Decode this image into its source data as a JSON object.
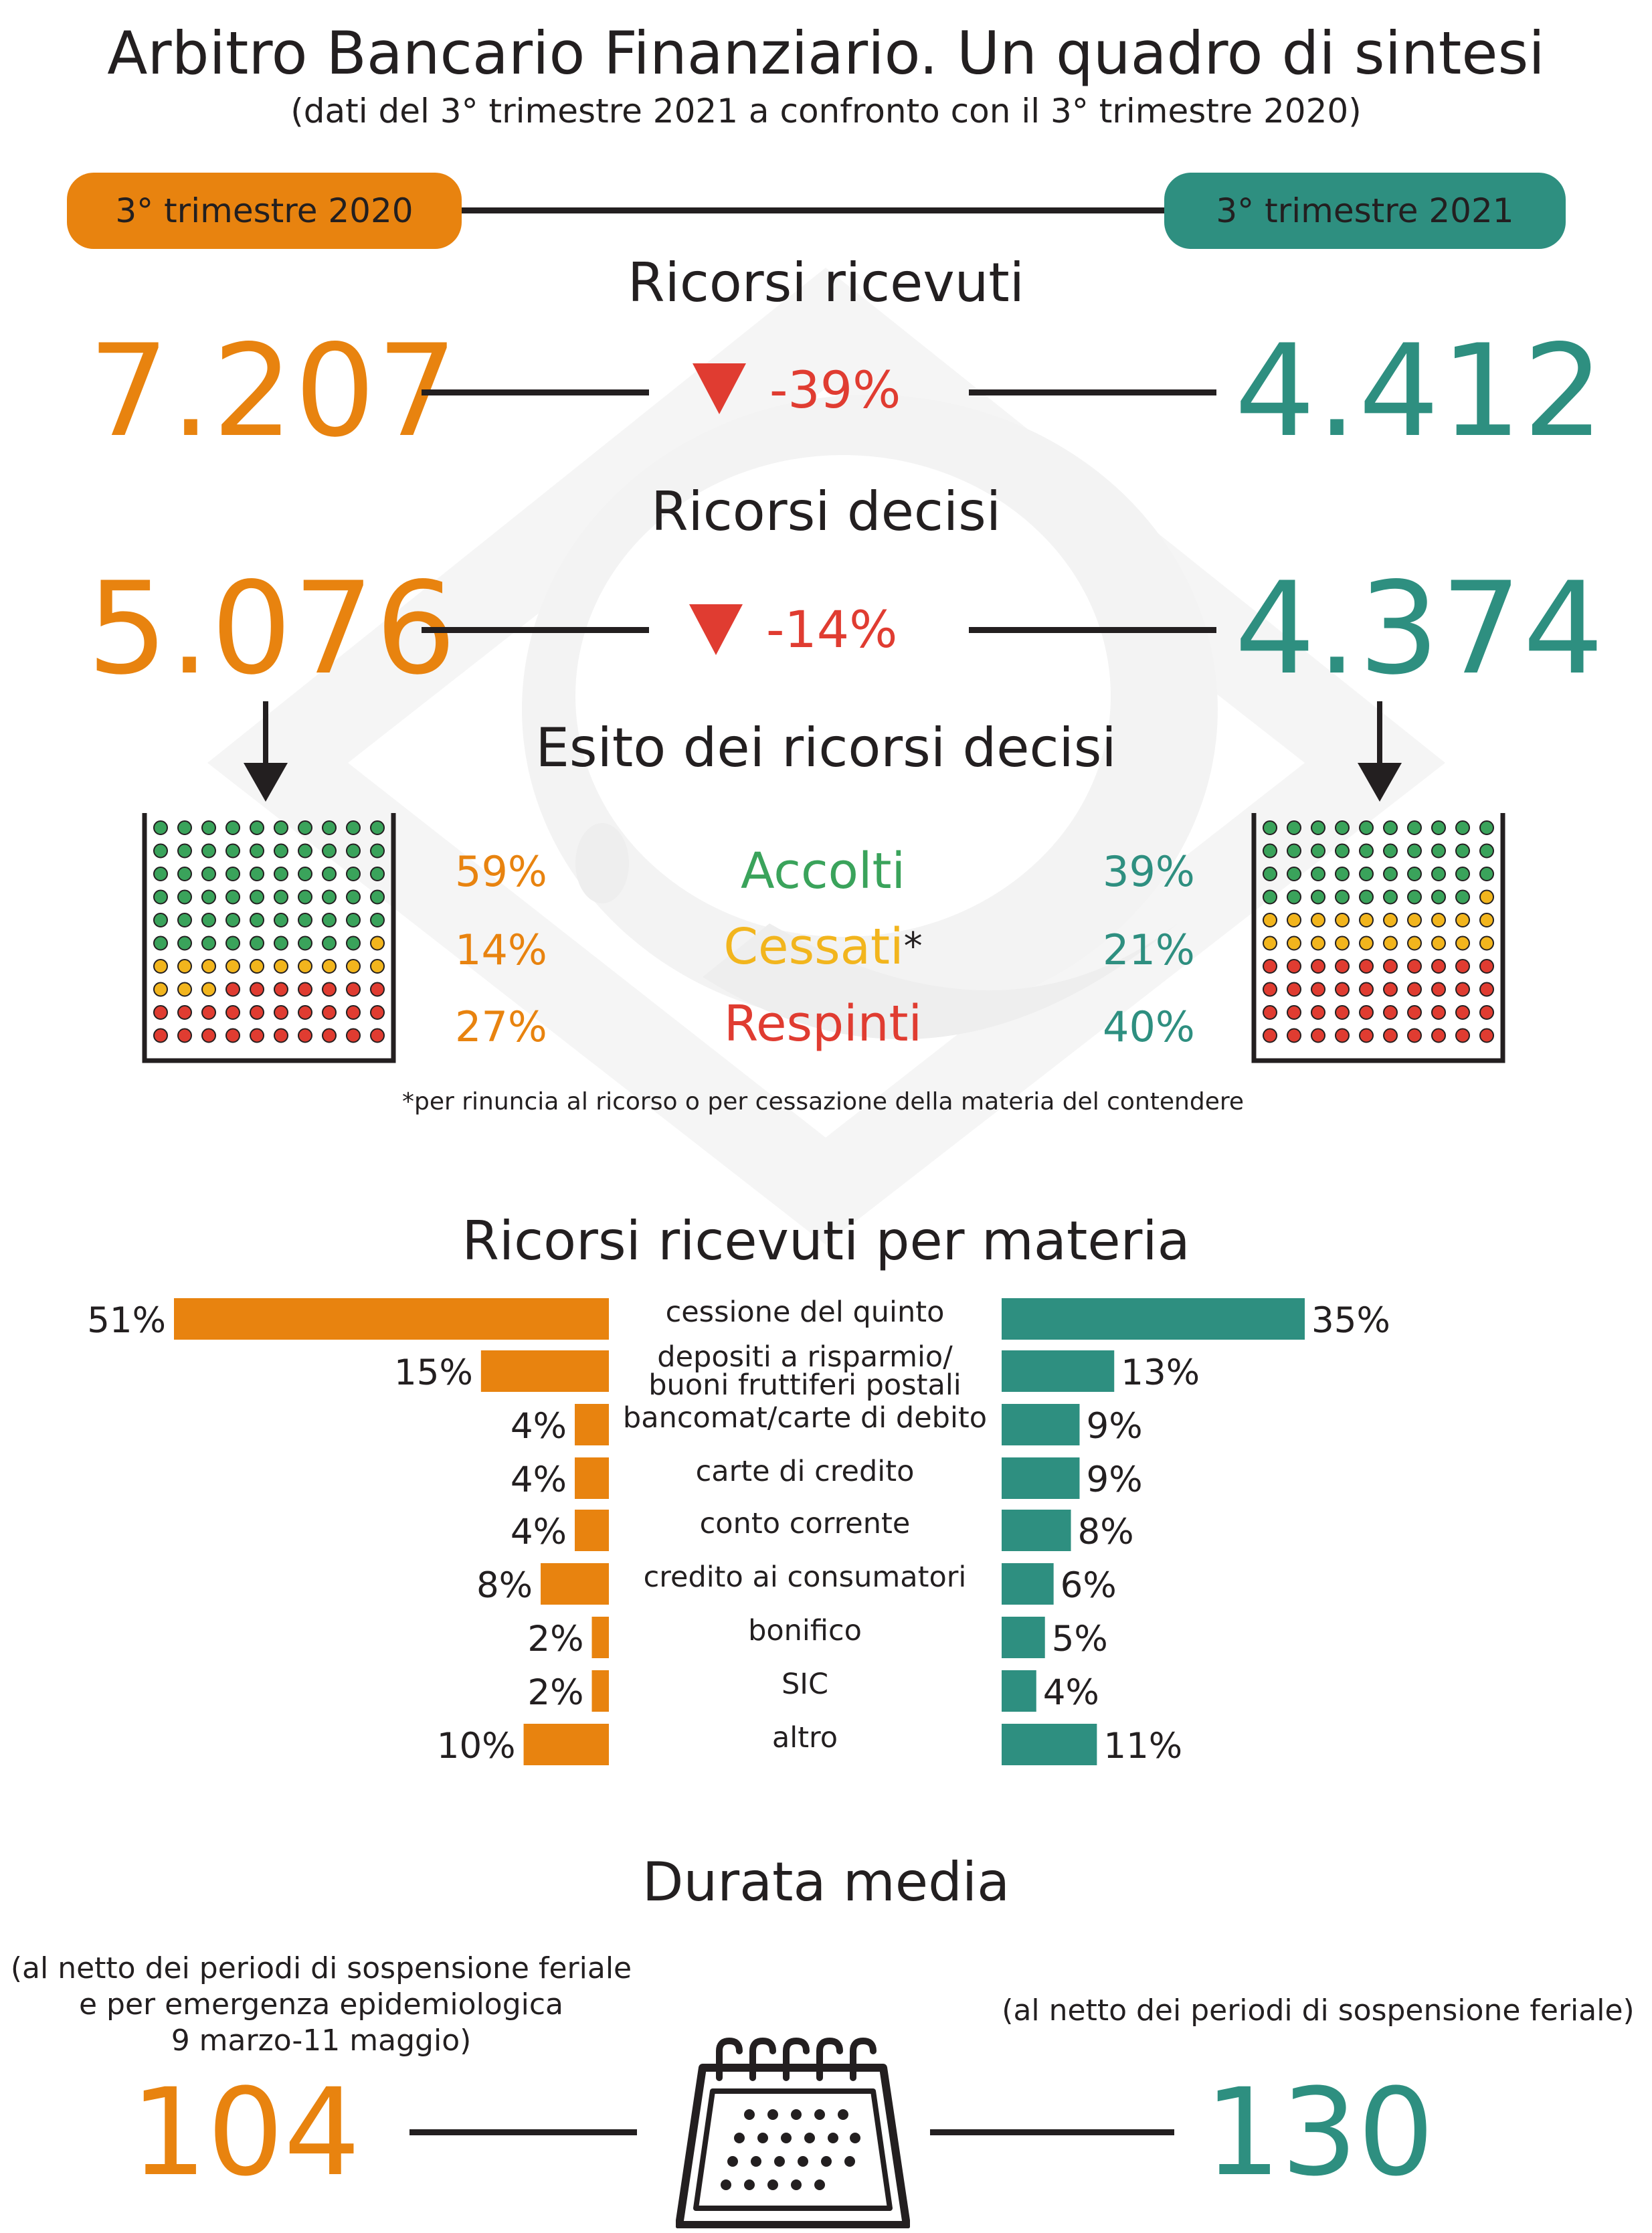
{
  "title": "Arbitro Bancario Finanziario. Un quadro di sintesi",
  "subtitle": "(dati del 3° trimestre 2021 a confronto con il 3° trimestre  2020)",
  "periods": {
    "left": "3° trimestre 2020",
    "right": "3° trimestre 2021"
  },
  "colors": {
    "orange": "#e8830f",
    "teal": "#2e8f80",
    "red": "#e03c31",
    "green": "#3aa35b",
    "yellow": "#f2b51d",
    "watermark": "#f4f4f4"
  },
  "received": {
    "title": "Ricorsi ricevuti",
    "left": "7.207",
    "right": "4.412",
    "change": "-39%"
  },
  "decided": {
    "title": "Ricorsi decisi",
    "left": "5.076",
    "right": "4.374",
    "change": "-14%"
  },
  "outcome": {
    "title": "Esito dei ricorsi decisi",
    "rows": [
      {
        "label": "Accolti",
        "left": "59%",
        "right": "39%",
        "color": "#3aa35b"
      },
      {
        "label": "Cessati",
        "left": "14%",
        "right": "21%",
        "color": "#f2b51d",
        "mark": "*"
      },
      {
        "label": "Respinti",
        "left": "27%",
        "right": "40%",
        "color": "#e03c31"
      }
    ],
    "footnote": "*per rinuncia al ricorso o per cessazione della materia del contendere",
    "grid_left": {
      "accolti": 59,
      "cessati": 14,
      "respinti": 27
    },
    "grid_right": {
      "accolti": 39,
      "cessati": 21,
      "respinti": 40
    }
  },
  "chart_data": {
    "type": "bar",
    "title": "Ricorsi ricevuti per materia",
    "categories": [
      "cessione del quinto",
      "depositi a risparmio/\nbuoni fruttiferi postali",
      "bancomat/carte di debito",
      "carte di credito",
      "conto corrente",
      "credito ai consumatori",
      "bonifico",
      "SIC",
      "altro"
    ],
    "series": [
      {
        "name": "3° trimestre 2020",
        "values": [
          51,
          15,
          4,
          4,
          4,
          8,
          2,
          2,
          10
        ]
      },
      {
        "name": "3° trimestre 2021",
        "values": [
          35,
          13,
          9,
          9,
          8,
          6,
          5,
          4,
          11
        ]
      }
    ],
    "value_labels_left": [
      "51%",
      "15%",
      "4%",
      "4%",
      "4%",
      "8%",
      "2%",
      "2%",
      "10%"
    ],
    "value_labels_right": [
      "35%",
      "13%",
      "9%",
      "9%",
      "8%",
      "6%",
      "5%",
      "4%",
      "11%"
    ],
    "unit": "%"
  },
  "duration": {
    "title": "Durata media",
    "left_note": [
      "(al netto dei  periodi di sospensione feriale",
      "e per emergenza epidemiologica",
      "9 marzo-11 maggio)"
    ],
    "right_note": "(al netto dei  periodi di sospensione feriale)",
    "left": "104",
    "right": "130",
    "icon": "calendar-icon"
  }
}
